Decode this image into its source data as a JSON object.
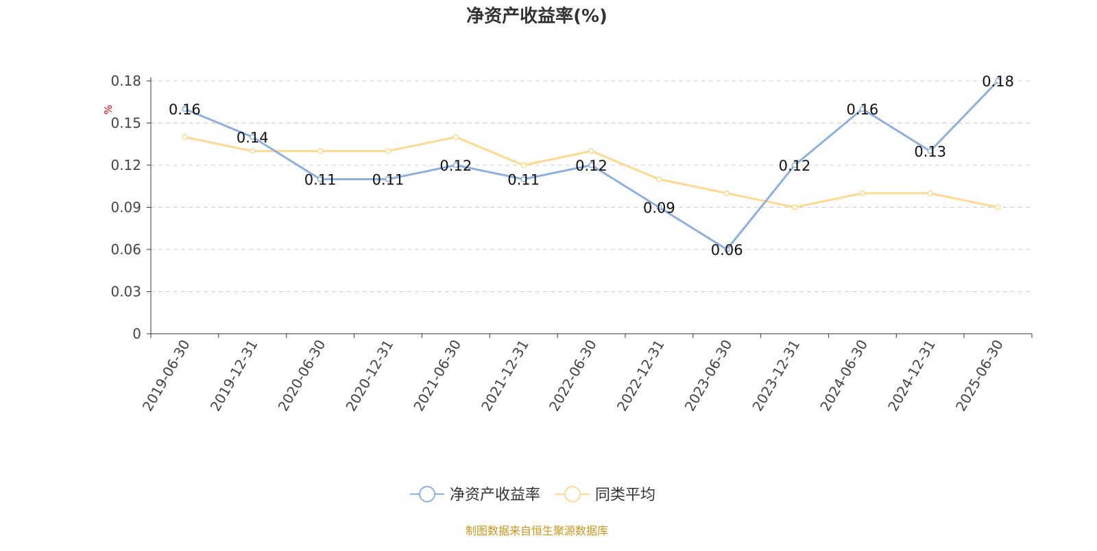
{
  "chart_data": {
    "type": "line",
    "title": "净资产收益率(%)",
    "ylabel": "%",
    "ylim": [
      0,
      0.18
    ],
    "yticks": [
      "0",
      "0.03",
      "0.06",
      "0.09",
      "0.12",
      "0.15",
      "0.18"
    ],
    "grid": "horizontal dashed",
    "legend_placement": "bottom",
    "categories": [
      "2019-06-30",
      "2019-12-31",
      "2020-06-30",
      "2020-12-31",
      "2021-06-30",
      "2021-12-31",
      "2022-06-30",
      "2022-12-31",
      "2023-06-30",
      "2023-12-31",
      "2024-06-30",
      "2024-12-31",
      "2025-06-30"
    ],
    "series": [
      {
        "name": "净资产收益率",
        "color": "#8eaedb",
        "values": [
          0.16,
          0.14,
          0.11,
          0.11,
          0.12,
          0.11,
          0.12,
          0.09,
          0.06,
          0.12,
          0.16,
          0.13,
          0.18
        ],
        "labels": true
      },
      {
        "name": "同类平均",
        "color": "#fdd992",
        "values": [
          0.14,
          0.13,
          0.13,
          0.13,
          0.14,
          0.12,
          0.13,
          0.11,
          0.1,
          0.09,
          0.1,
          0.1,
          0.09
        ],
        "labels": false
      }
    ]
  },
  "footer": {
    "source": "制图数据来自恒生聚源数据库",
    "color": "#c8961e"
  }
}
